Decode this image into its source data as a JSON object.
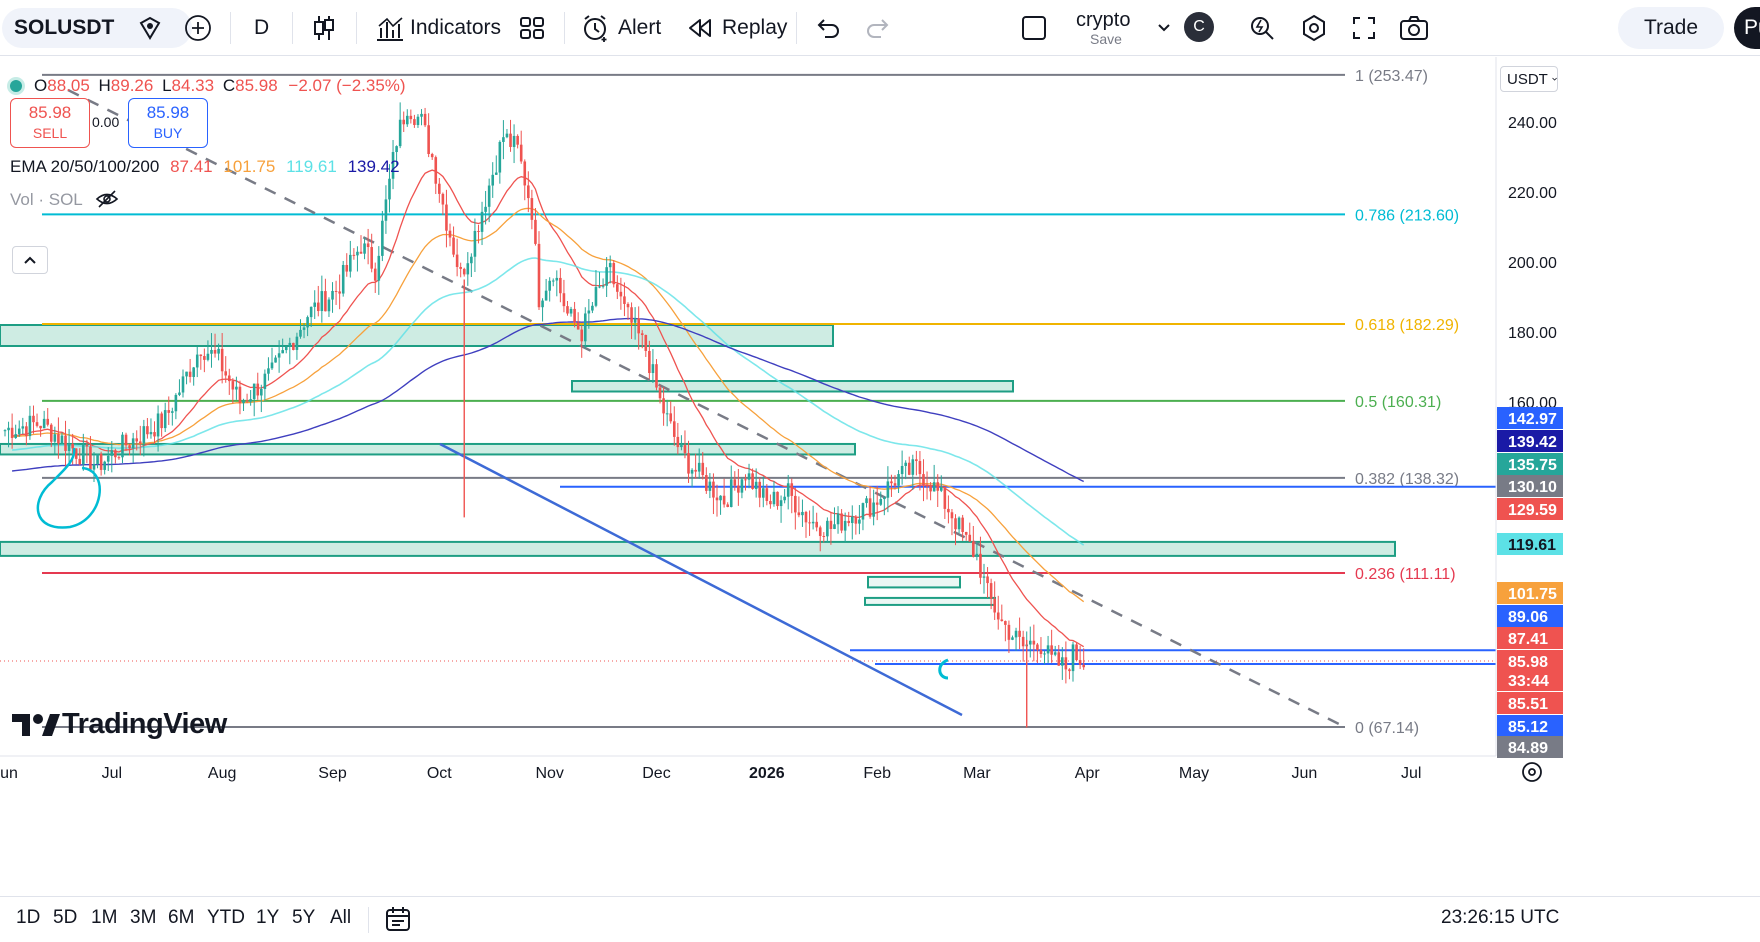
{
  "toolbar": {
    "symbol": "SOLUSDT",
    "interval": "D",
    "indicators_label": "Indicators",
    "alert_label": "Alert",
    "replay_label": "Replay",
    "layout_name": "crypto",
    "layout_save": "Save",
    "avatar_letter": "C",
    "trade_label": "Trade",
    "publish_label": "Pu"
  },
  "legend": {
    "open_label": "O",
    "open": "88.05",
    "high_label": "H",
    "high": "89.26",
    "low_label": "L",
    "low": "84.33",
    "close_label": "C",
    "close": "85.98",
    "change": "−2.07 (−2.35%)",
    "sell_price": "85.98",
    "sell_label": "SELL",
    "spread": "0.00",
    "buy_price": "85.98",
    "buy_label": "BUY",
    "ema_title": "EMA 20/50/100/200",
    "ema20": "87.41",
    "ema50": "101.75",
    "ema100": "119.61",
    "ema200": "139.42",
    "vol_label": "Vol · SOL"
  },
  "currency": "USDT",
  "brand": "TradingView",
  "bottom": {
    "ranges": [
      "1D",
      "5D",
      "1M",
      "3M",
      "6M",
      "YTD",
      "1Y",
      "5Y",
      "All"
    ],
    "clock": "23:26:15 UTC"
  },
  "colors": {
    "up": "#26a69a",
    "down": "#ef5350",
    "ema20": "#ef5350",
    "ema50": "#f7a13c",
    "ema100": "#5ce1e6",
    "ema200": "#3f3fbf",
    "zone_fill": "#bde5da",
    "zone_stroke": "#1e9e84",
    "blue_line": "#2962ff",
    "trend_line": "#3d6ad6"
  },
  "chart_data": {
    "type": "candlestick",
    "symbol": "SOLUSDT",
    "interval": "1D",
    "x_axis_labels": [
      "Jun",
      "Jul",
      "Aug",
      "Sep",
      "Oct",
      "Nov",
      "Dec",
      "2026",
      "Feb",
      "Mar",
      "Apr",
      "May",
      "Jun",
      "Jul"
    ],
    "y_axis_ticks": [
      "240.00",
      "220.00",
      "200.00",
      "180.00",
      "160.00"
    ],
    "ylim": [
      82,
      258
    ],
    "fib_levels": [
      {
        "ratio": "1",
        "label": "1 (253.47)",
        "value": 253.47,
        "color": "#787b86"
      },
      {
        "ratio": "0.786",
        "label": "0.786 (213.60)",
        "value": 213.6,
        "color": "#00bcd4"
      },
      {
        "ratio": "0.618",
        "label": "0.618 (182.29)",
        "value": 182.29,
        "color": "#f0b400"
      },
      {
        "ratio": "0.5",
        "label": "0.5 (160.31)",
        "value": 160.31,
        "color": "#4caf50"
      },
      {
        "ratio": "0.382",
        "label": "0.382 (138.32)",
        "value": 138.32,
        "color": "#787b86"
      },
      {
        "ratio": "0.236",
        "label": "0.236 (111.11)",
        "value": 111.11,
        "color": "#e53950"
      },
      {
        "ratio": "0",
        "label": "0 (67.14)",
        "value": 67.14,
        "color": "#787b86"
      }
    ],
    "price_badges": [
      {
        "label": "142.97",
        "bg": "#2962ff",
        "fg": "#ffffff"
      },
      {
        "label": "139.42",
        "bg": "#1a1aa6",
        "fg": "#ffffff"
      },
      {
        "label": "135.75",
        "bg": "#26a69a",
        "fg": "#ffffff"
      },
      {
        "label": "130.10",
        "bg": "#787b86",
        "fg": "#ffffff"
      },
      {
        "label": "129.59",
        "bg": "#ef5350",
        "fg": "#ffffff"
      },
      {
        "label": "119.61",
        "bg": "#5ce1e6",
        "fg": "#131722"
      },
      {
        "label": "101.75",
        "bg": "#f7a13c",
        "fg": "#ffffff"
      },
      {
        "label": "89.06",
        "bg": "#2962ff",
        "fg": "#ffffff"
      },
      {
        "label": "87.41",
        "bg": "#ef5350",
        "fg": "#ffffff"
      },
      {
        "label": "85.98",
        "bg": "#ef5350",
        "fg": "#ffffff"
      },
      {
        "label": "33:44",
        "bg": "#ef5350",
        "fg": "#ffffff"
      },
      {
        "label": "85.51",
        "bg": "#ef5350",
        "fg": "#ffffff"
      },
      {
        "label": "85.12",
        "bg": "#2962ff",
        "fg": "#ffffff"
      },
      {
        "label": "84.89",
        "bg": "#787b86",
        "fg": "#ffffff"
      }
    ],
    "series": [
      {
        "name": "EMA 20",
        "last": 87.41
      },
      {
        "name": "EMA 50",
        "last": 101.75
      },
      {
        "name": "EMA 100",
        "last": 119.61
      },
      {
        "name": "EMA 200",
        "last": 139.42
      }
    ],
    "support_resistance_zones": [
      [
        176,
        182
      ],
      [
        163,
        166
      ],
      [
        145,
        148
      ],
      [
        116,
        120
      ],
      [
        107,
        110
      ],
      [
        102,
        104
      ]
    ],
    "horizontal_lines": [
      135.75,
      89.06,
      85.12
    ]
  }
}
